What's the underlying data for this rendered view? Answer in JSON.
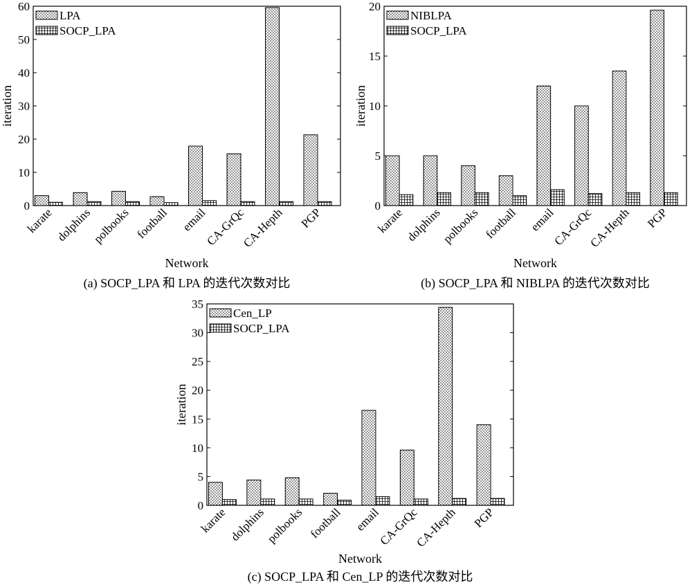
{
  "chart_data": [
    {
      "type": "bar",
      "caption": "(a) SOCP_LPA 和 LPA 的迭代次数对比",
      "xlabel": "Network",
      "ylabel": "iteration",
      "ylim": [
        0,
        60
      ],
      "yticks": [
        0,
        10,
        20,
        30,
        40,
        50,
        60
      ],
      "categories": [
        "karate",
        "dolphins",
        "polbooks",
        "football",
        "email",
        "CA-GrQc",
        "CA-Hepth",
        "PGP"
      ],
      "series": [
        {
          "name": "LPA",
          "pattern": "dots",
          "values": [
            3.0,
            3.9,
            4.3,
            2.7,
            17.9,
            15.6,
            59.6,
            21.3
          ]
        },
        {
          "name": "SOCP_LPA",
          "pattern": "grid",
          "values": [
            1.0,
            1.2,
            1.2,
            0.9,
            1.5,
            1.2,
            1.2,
            1.2
          ]
        }
      ],
      "legend": "top-left",
      "grid": false
    },
    {
      "type": "bar",
      "caption": "(b) SOCP_LPA 和 NIBLPA 的迭代次数对比",
      "xlabel": "Network",
      "ylabel": "iteration",
      "ylim": [
        0,
        20
      ],
      "yticks": [
        0,
        5,
        10,
        15,
        20
      ],
      "categories": [
        "karate",
        "dolphins",
        "polbooks",
        "football",
        "email",
        "CA-GrQc",
        "CA-Hepth",
        "PGP"
      ],
      "series": [
        {
          "name": "NIBLPA",
          "pattern": "dots",
          "values": [
            5.0,
            5.0,
            4.0,
            3.0,
            12.0,
            10.0,
            13.5,
            19.6
          ]
        },
        {
          "name": "SOCP_LPA",
          "pattern": "grid",
          "values": [
            1.1,
            1.3,
            1.3,
            1.0,
            1.6,
            1.2,
            1.3,
            1.3
          ]
        }
      ],
      "legend": "top-left",
      "grid": false
    },
    {
      "type": "bar",
      "caption": "(c) SOCP_LPA 和 Cen_LP 的迭代次数对比",
      "xlabel": "Network",
      "ylabel": "iteration",
      "ylim": [
        0,
        35
      ],
      "yticks": [
        0,
        5,
        10,
        15,
        20,
        25,
        30,
        35
      ],
      "categories": [
        "karate",
        "dolphins",
        "polbooks",
        "football",
        "email",
        "CA-GrQc",
        "CA-Hepth",
        "PGP"
      ],
      "series": [
        {
          "name": "Cen_LP",
          "pattern": "dots",
          "values": [
            4.0,
            4.4,
            4.8,
            2.1,
            16.5,
            9.6,
            34.4,
            14.0
          ]
        },
        {
          "name": "SOCP_LPA",
          "pattern": "grid",
          "values": [
            1.0,
            1.1,
            1.1,
            0.9,
            1.5,
            1.1,
            1.2,
            1.2
          ]
        }
      ],
      "legend": "top-left",
      "grid": false
    }
  ]
}
